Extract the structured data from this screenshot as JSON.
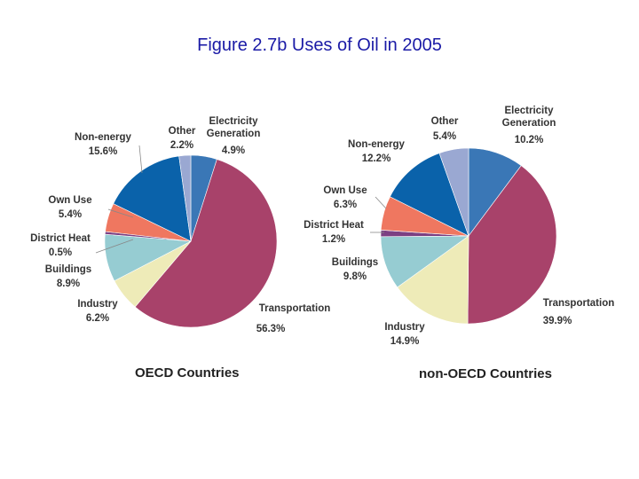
{
  "title": "Figure 2.7b Uses of Oil in 2005",
  "colors": {
    "Electricity Generation": "#3a77b6",
    "Transportation": "#a8426a",
    "Industry": "#eeebb8",
    "Buildings": "#96ccd2",
    "District Heat": "#7c3f82",
    "Own Use": "#ef7760",
    "Non-energy": "#0a62aa",
    "Other": "#9aa8d2"
  },
  "chart_data": [
    {
      "type": "pie",
      "title": "OECD Countries",
      "slices": [
        {
          "label": "Electricity Generation",
          "value": 4.9,
          "value_label": "4.9%"
        },
        {
          "label": "Transportation",
          "value": 56.3,
          "value_label": "56.3%"
        },
        {
          "label": "Industry",
          "value": 6.2,
          "value_label": "6.2%"
        },
        {
          "label": "Buildings",
          "value": 8.9,
          "value_label": "8.9%"
        },
        {
          "label": "District Heat",
          "value": 0.5,
          "value_label": "0.5%"
        },
        {
          "label": "Own Use",
          "value": 5.4,
          "value_label": "5.4%"
        },
        {
          "label": "Non-energy",
          "value": 15.6,
          "value_label": "15.6%"
        },
        {
          "label": "Other",
          "value": 2.2,
          "value_label": "2.2%"
        }
      ]
    },
    {
      "type": "pie",
      "title": "non-OECD Countries",
      "slices": [
        {
          "label": "Electricity Generation",
          "value": 10.2,
          "value_label": "10.2%"
        },
        {
          "label": "Transportation",
          "value": 39.9,
          "value_label": "39.9%"
        },
        {
          "label": "Industry",
          "value": 14.9,
          "value_label": "14.9%"
        },
        {
          "label": "Buildings",
          "value": 9.8,
          "value_label": "9.8%"
        },
        {
          "label": "District Heat",
          "value": 1.2,
          "value_label": "1.2%"
        },
        {
          "label": "Own Use",
          "value": 6.3,
          "value_label": "6.3%"
        },
        {
          "label": "Non-energy",
          "value": 12.2,
          "value_label": "12.2%"
        },
        {
          "label": "Other",
          "value": 5.4,
          "value_label": "5.4%"
        }
      ]
    }
  ],
  "slice_text": [
    [
      "Electricity\nGeneration",
      "Transportation",
      "Industry",
      "Buildings",
      "District Heat",
      "Own Use",
      "Non-energy",
      "Other"
    ],
    [
      "Electricity\nGeneration",
      "Transportation",
      "Industry",
      "Buildings",
      "District Heat",
      "Own Use",
      "Non-energy",
      "Other"
    ]
  ]
}
